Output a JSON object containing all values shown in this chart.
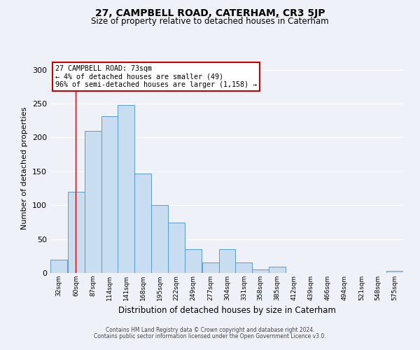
{
  "title_line1": "27, CAMPBELL ROAD, CATERHAM, CR3 5JP",
  "title_line2": "Size of property relative to detached houses in Caterham",
  "xlabel": "Distribution of detached houses by size in Caterham",
  "ylabel": "Number of detached properties",
  "bin_labels": [
    "32sqm",
    "60sqm",
    "87sqm",
    "114sqm",
    "141sqm",
    "168sqm",
    "195sqm",
    "222sqm",
    "249sqm",
    "277sqm",
    "304sqm",
    "331sqm",
    "358sqm",
    "385sqm",
    "412sqm",
    "439sqm",
    "466sqm",
    "494sqm",
    "521sqm",
    "548sqm",
    "575sqm"
  ],
  "bar_heights": [
    20,
    120,
    210,
    231,
    248,
    147,
    100,
    74,
    35,
    15,
    35,
    15,
    5,
    9,
    0,
    0,
    0,
    0,
    0,
    0,
    3
  ],
  "bar_color": "#c9ddf0",
  "bar_edge_color": "#5b9bd5",
  "property_line_x": 73,
  "bin_edges_sqm": [
    32,
    60,
    87,
    114,
    141,
    168,
    195,
    222,
    249,
    277,
    304,
    331,
    358,
    385,
    412,
    439,
    466,
    494,
    521,
    548,
    575
  ],
  "bin_width": 27,
  "annotation_title": "27 CAMPBELL ROAD: 73sqm",
  "annotation_line2": "← 4% of detached houses are smaller (49)",
  "annotation_line3": "96% of semi-detached houses are larger (1,158) →",
  "annotation_box_color": "#ffffff",
  "annotation_box_edge": "#cc0000",
  "vline_color": "#cc0000",
  "ylim": [
    0,
    310
  ],
  "yticks": [
    0,
    50,
    100,
    150,
    200,
    250,
    300
  ],
  "footer_line1": "Contains HM Land Registry data © Crown copyright and database right 2024.",
  "footer_line2": "Contains public sector information licensed under the Open Government Licence v3.0.",
  "background_color": "#eef2f8",
  "plot_bg_color": "#eef2f8",
  "grid_color": "#ffffff"
}
